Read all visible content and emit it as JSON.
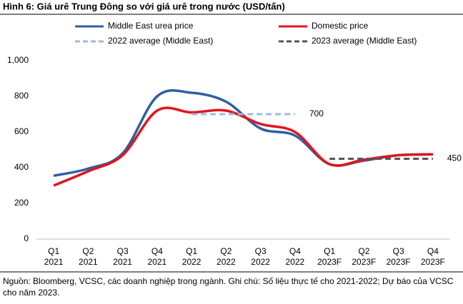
{
  "chart_data": {
    "type": "line",
    "title": "Hình 6: Giá urê Trung Đông so với giá urê trong nước (USD/tấn)",
    "categories": [
      [
        "Q1",
        "2021"
      ],
      [
        "Q2",
        "2021"
      ],
      [
        "Q3",
        "2021"
      ],
      [
        "Q4",
        "2021"
      ],
      [
        "Q1",
        "2022"
      ],
      [
        "Q2",
        "2022"
      ],
      [
        "Q3",
        "2022"
      ],
      [
        "Q4",
        "2022"
      ],
      [
        "Q1",
        "2023F"
      ],
      [
        "Q2",
        "2023F"
      ],
      [
        "Q3",
        "2023F"
      ],
      [
        "Q4",
        "2023F"
      ]
    ],
    "series": [
      {
        "name": "Middle East urea price",
        "color": "#2e5fa3",
        "values": [
          355,
          395,
          480,
          800,
          820,
          770,
          620,
          580,
          420,
          440,
          470,
          475
        ]
      },
      {
        "name": "Domestic price",
        "color": "#e3141b",
        "values": [
          300,
          380,
          470,
          720,
          710,
          720,
          645,
          600,
          420,
          445,
          470,
          475
        ]
      },
      {
        "name": "2022 average (Middle East)",
        "color": "#9dbbe0",
        "dashed": true,
        "values": [
          null,
          null,
          null,
          null,
          700,
          700,
          700,
          700,
          null,
          null,
          null,
          null
        ]
      },
      {
        "name": "2023 average (Middle East)",
        "color": "#555555",
        "dashed": true,
        "values": [
          null,
          null,
          null,
          null,
          null,
          null,
          null,
          null,
          450,
          450,
          450,
          450
        ]
      }
    ],
    "ylim": [
      0,
      1000
    ],
    "yticks": [
      0,
      200,
      400,
      600,
      800,
      {
        "value": 1000,
        "label": "1,000"
      }
    ],
    "grid": false,
    "note": "Nguồn: Bloomberg, VCSC, các doanh nghiệp trong ngành. Ghi chú: Số liệu thực tế cho 2021-2022; Dự báo của VCSC cho năm 2023."
  }
}
